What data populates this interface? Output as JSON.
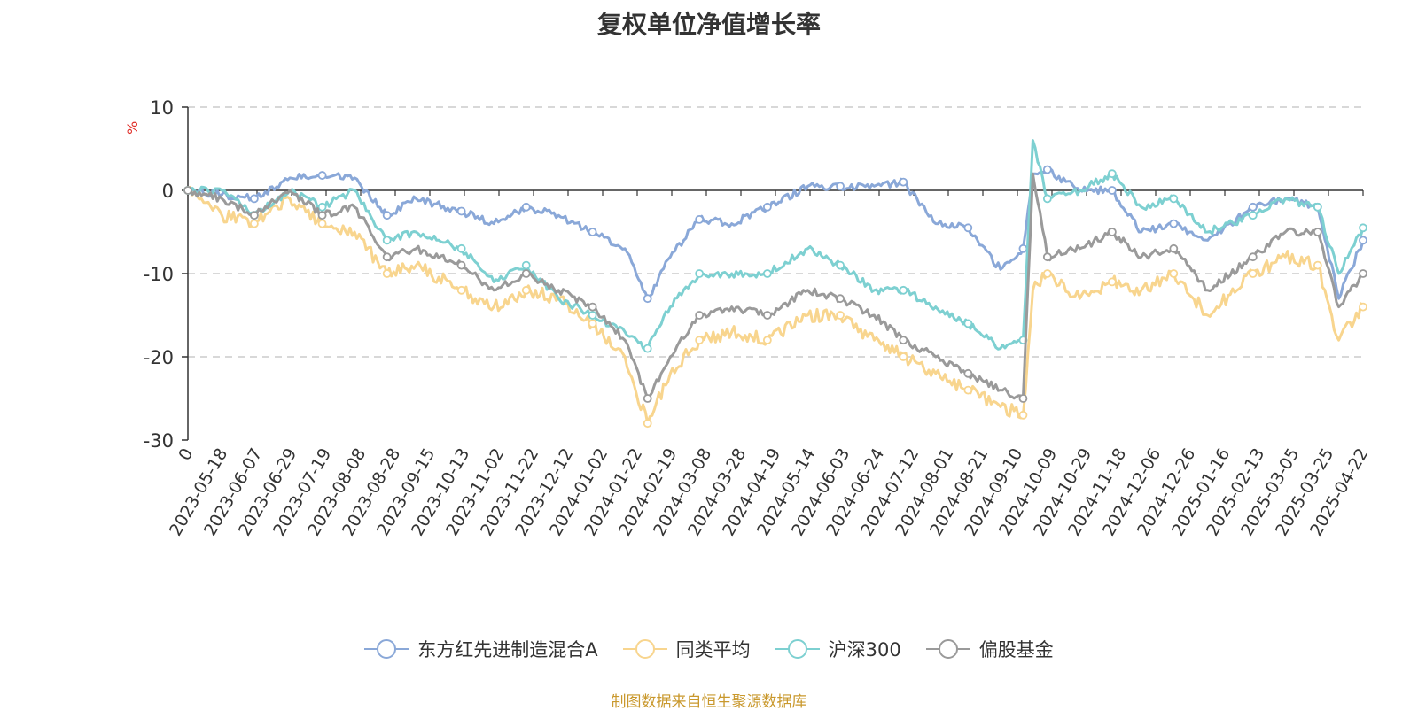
{
  "chart_data": {
    "type": "line",
    "title": "复权单位净值增长率",
    "ylabel": "%",
    "ylim": [
      -30,
      10
    ],
    "yticks": [
      10,
      0,
      -10,
      -20,
      -30
    ],
    "grid": true,
    "legend_position": "bottom",
    "x_tick_labels": [
      "0",
      "2023-05-18",
      "2023-06-07",
      "2023-06-29",
      "2023-07-19",
      "2023-08-08",
      "2023-08-28",
      "2023-09-15",
      "2023-10-13",
      "2023-11-02",
      "2023-11-22",
      "2023-12-12",
      "2024-01-02",
      "2024-01-22",
      "2024-02-19",
      "2024-03-08",
      "2024-03-28",
      "2024-04-19",
      "2024-05-14",
      "2024-06-03",
      "2024-06-24",
      "2024-07-12",
      "2024-08-01",
      "2024-08-21",
      "2024-09-10",
      "2024-10-09",
      "2024-10-29",
      "2024-11-18",
      "2024-12-06",
      "2024-12-26",
      "2025-01-16",
      "2025-02-13",
      "2025-03-05",
      "2025-03-25",
      "2025-04-22"
    ],
    "x": [
      "2023-04-27",
      "2023-05-18",
      "2023-06-07",
      "2023-06-29",
      "2023-07-19",
      "2023-08-08",
      "2023-08-28",
      "2023-09-15",
      "2023-10-13",
      "2023-11-02",
      "2023-11-22",
      "2023-12-12",
      "2024-01-02",
      "2024-01-22",
      "2024-02-05",
      "2024-02-19",
      "2024-03-08",
      "2024-03-28",
      "2024-04-19",
      "2024-05-14",
      "2024-06-03",
      "2024-06-24",
      "2024-07-12",
      "2024-08-01",
      "2024-08-21",
      "2024-09-10",
      "2024-09-24",
      "2024-09-30",
      "2024-10-09",
      "2024-10-29",
      "2024-11-18",
      "2024-12-06",
      "2024-12-26",
      "2025-01-16",
      "2025-02-13",
      "2025-03-05",
      "2025-03-25",
      "2025-04-07",
      "2025-04-22"
    ],
    "series": [
      {
        "name": "东方红先进制造混合A",
        "color": "#8aa8d8",
        "values": [
          0,
          -0.5,
          -1,
          1.5,
          1.8,
          1.5,
          -3,
          -1,
          -2.5,
          -4,
          -2,
          -3,
          -5,
          -7,
          -13,
          -8,
          -3.5,
          -4,
          -2,
          0.5,
          0.5,
          0.5,
          1,
          -4,
          -4.5,
          -9.5,
          -7,
          2,
          2.5,
          0,
          0,
          -5,
          -4,
          -6,
          -2,
          -1,
          -2,
          -13,
          -6
        ]
      },
      {
        "name": "同类平均",
        "color": "#f8d58e",
        "values": [
          0,
          -3,
          -4,
          -1,
          -4,
          -5,
          -10,
          -9,
          -12,
          -14,
          -12,
          -13,
          -16,
          -20,
          -28,
          -22,
          -18,
          -17,
          -18,
          -15,
          -15,
          -18,
          -20,
          -22,
          -24,
          -26,
          -27,
          -12,
          -10,
          -13,
          -11,
          -12,
          -10,
          -15,
          -10,
          -8,
          -9,
          -18,
          -14
        ]
      },
      {
        "name": "沪深300",
        "color": "#7dd0d1",
        "values": [
          0,
          0,
          -3,
          0,
          -2,
          0,
          -6,
          -5,
          -7,
          -11,
          -9,
          -13,
          -15,
          -17,
          -19,
          -14,
          -10,
          -10,
          -10,
          -7,
          -9,
          -12,
          -12,
          -14,
          -16,
          -19,
          -18,
          6,
          -1,
          0,
          2,
          -2,
          -1,
          -5,
          -3,
          -1,
          -2,
          -10,
          -4.5
        ]
      },
      {
        "name": "偏股基金",
        "color": "#9a9a9a",
        "values": [
          0,
          -1,
          -3,
          0,
          -3,
          -2,
          -8,
          -7,
          -9,
          -12,
          -10,
          -12,
          -14,
          -18,
          -25,
          -20,
          -15,
          -14,
          -15,
          -12,
          -13,
          -15,
          -18,
          -20,
          -22,
          -24,
          -25,
          2,
          -8,
          -7,
          -5,
          -8,
          -7,
          -12,
          -8,
          -5,
          -5,
          -14,
          -10
        ]
      }
    ]
  },
  "source_text": "制图数据来自恒生聚源数据库"
}
